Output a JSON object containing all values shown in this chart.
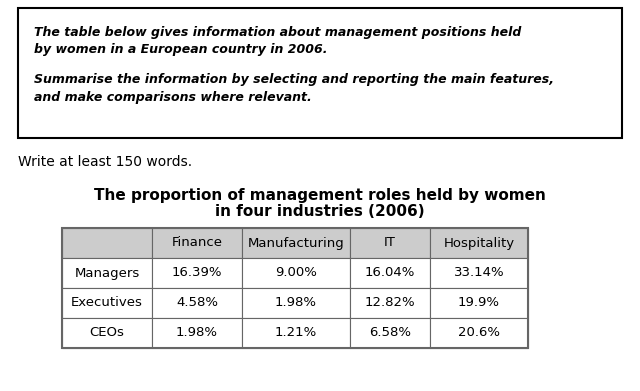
{
  "prompt_box_text_line1": "The table below gives information about management positions held",
  "prompt_box_text_line2": "by women in a European country in 2006.",
  "prompt_box_text_line3": "Summarise the information by selecting and reporting the main features,",
  "prompt_box_text_line4": "and make comparisons where relevant.",
  "write_prompt": "Write at least 150 words.",
  "table_title_line1": "The proportion of management roles held by women",
  "table_title_line2": "in four industries (2006)",
  "col_headers": [
    "",
    "Finance",
    "Manufacturing",
    "IT",
    "Hospitality"
  ],
  "row_labels": [
    "Managers",
    "Executives",
    "CEOs"
  ],
  "table_data": [
    [
      "16.39%",
      "9.00%",
      "16.04%",
      "33.14%"
    ],
    [
      "4.58%",
      "1.98%",
      "12.82%",
      "19.9%"
    ],
    [
      "1.98%",
      "1.21%",
      "6.58%",
      "20.6%"
    ]
  ],
  "background_color": "#ffffff",
  "box_border_color": "#000000",
  "table_header_bg": "#cccccc",
  "table_cell_bg": "#ffffff",
  "table_border_color": "#666666",
  "prompt_font_size": 9.0,
  "write_font_size": 10,
  "title_font_size": 11,
  "table_font_size": 9.5
}
